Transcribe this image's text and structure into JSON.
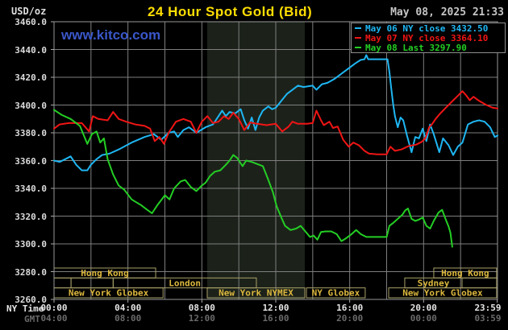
{
  "header": {
    "units_label": "USD/oz",
    "title": "24 Hour Spot Gold (Bid)",
    "datetime": "May 08, 2025 21:33",
    "watermark": "www.kitco.com"
  },
  "legend": {
    "items": [
      {
        "label": "May 06 NY close 3432.50",
        "color": "#1FB6F2"
      },
      {
        "label": "May 07 NY close 3364.10",
        "color": "#F01515"
      },
      {
        "label": "May 08 Last 3297.90",
        "color": "#24CE24"
      }
    ]
  },
  "axes": {
    "ny_time_label": "NY Time",
    "gmt_label": "GMT",
    "y_tick_labels": [
      "3460.0",
      "3440.0",
      "3420.0",
      "3400.0",
      "3380.0",
      "3360.0",
      "3340.0",
      "3320.0",
      "3300.0",
      "3280.0",
      "3260.0"
    ],
    "ny_times": [
      "00:00",
      "04:00",
      "08:00",
      "12:00",
      "16:00",
      "20:00",
      "23:59"
    ],
    "gmt_times": [
      "04:00",
      "08:00",
      "12:00",
      "16:00",
      "20:00",
      "00:00",
      "03:59"
    ],
    "tick_positions_hours": [
      0,
      4,
      8,
      12,
      16,
      20,
      23.983
    ]
  },
  "sessions": {
    "border_color": "#A9A169",
    "label_color": "#DCB83E",
    "rows": [
      {
        "boxes": [
          {
            "label": "Hong Kong",
            "start_h": 0,
            "end_h": 5.5
          },
          {
            "label": "Hong Kong",
            "start_h": 20.55,
            "end_h": 23.95
          }
        ]
      },
      {
        "boxes": [
          {
            "label": "",
            "start_h": 0,
            "end_h": 0.92
          },
          {
            "label": "",
            "start_h": 0.92,
            "end_h": 3.2
          },
          {
            "label": "London",
            "start_h": 3.2,
            "end_h": 10.95
          },
          {
            "label": "Sydney",
            "start_h": 18.98,
            "end_h": 22.08
          },
          {
            "label": "",
            "start_h": 22.08,
            "end_h": 23.95
          }
        ]
      },
      {
        "boxes": [
          {
            "label": "New York Globex",
            "start_h": 0,
            "end_h": 5.9
          },
          {
            "label": "New York NYMEX",
            "start_h": 8.29,
            "end_h": 13.57
          },
          {
            "label": "NY Globex",
            "start_h": 13.66,
            "end_h": 16.84
          },
          {
            "label": "New York Globex",
            "start_h": 18.11,
            "end_h": 23.95
          }
        ]
      }
    ]
  },
  "colors": {
    "background": "#000000",
    "grid": "#7E7E7E",
    "plot_border": "#989898",
    "shaded_band": "#1C221A"
  },
  "chart_data": {
    "type": "line",
    "title": "24 Hour Spot Gold (Bid)",
    "xlabel": "NY Time (hours)",
    "ylabel": "USD/oz",
    "x_range_hours": [
      0,
      24
    ],
    "ylim": [
      3260,
      3460
    ],
    "y_tick_step": 20,
    "x_grid_step_hours": 2,
    "grid": true,
    "legend_position": "top-right",
    "shaded_band_hours": [
      8.29,
      13.57
    ],
    "series": [
      {
        "name": "May 06",
        "close_label": "NY close 3432.50",
        "color": "#1FB6F2",
        "points": [
          [
            0,
            3360
          ],
          [
            0.3,
            3359
          ],
          [
            0.6,
            3361
          ],
          [
            0.9,
            3363
          ],
          [
            1.2,
            3357
          ],
          [
            1.5,
            3353
          ],
          [
            1.8,
            3353
          ],
          [
            2.0,
            3357
          ],
          [
            2.3,
            3361
          ],
          [
            2.6,
            3364
          ],
          [
            3.0,
            3365
          ],
          [
            3.5,
            3368
          ],
          [
            4.2,
            3373
          ],
          [
            4.9,
            3377
          ],
          [
            5.4,
            3379
          ],
          [
            5.8,
            3375
          ],
          [
            6.2,
            3380
          ],
          [
            6.5,
            3381
          ],
          [
            6.7,
            3377
          ],
          [
            7.0,
            3382
          ],
          [
            7.3,
            3384
          ],
          [
            7.7,
            3380
          ],
          [
            8.2,
            3384
          ],
          [
            8.6,
            3386
          ],
          [
            8.8,
            3390
          ],
          [
            9.1,
            3396
          ],
          [
            9.3,
            3392
          ],
          [
            9.5,
            3395
          ],
          [
            9.8,
            3394
          ],
          [
            10.1,
            3397
          ],
          [
            10.3,
            3389
          ],
          [
            10.5,
            3383
          ],
          [
            10.7,
            3391
          ],
          [
            10.9,
            3382
          ],
          [
            11.1,
            3391
          ],
          [
            11.3,
            3396
          ],
          [
            11.6,
            3399
          ],
          [
            11.8,
            3397
          ],
          [
            12.0,
            3398
          ],
          [
            12.3,
            3403
          ],
          [
            12.6,
            3408
          ],
          [
            12.8,
            3410
          ],
          [
            13.2,
            3414
          ],
          [
            13.5,
            3413
          ],
          [
            14.0,
            3414
          ],
          [
            14.2,
            3411
          ],
          [
            14.5,
            3415
          ],
          [
            14.8,
            3416
          ],
          [
            15.2,
            3419
          ],
          [
            15.7,
            3424
          ],
          [
            16.0,
            3427
          ],
          [
            16.3,
            3430
          ],
          [
            16.6,
            3432.5
          ],
          [
            16.8,
            3433
          ],
          [
            16.9,
            3436
          ],
          [
            17.0,
            3433
          ],
          [
            17.4,
            3433
          ],
          [
            17.8,
            3433
          ],
          [
            18.05,
            3433
          ],
          [
            18.15,
            3424
          ],
          [
            18.25,
            3412
          ],
          [
            18.35,
            3401
          ],
          [
            18.45,
            3392
          ],
          [
            18.6,
            3384
          ],
          [
            18.75,
            3391
          ],
          [
            18.9,
            3389
          ],
          [
            19.1,
            3378
          ],
          [
            19.35,
            3366
          ],
          [
            19.55,
            3377
          ],
          [
            19.75,
            3376
          ],
          [
            19.95,
            3383
          ],
          [
            20.15,
            3374
          ],
          [
            20.35,
            3386
          ],
          [
            20.55,
            3379
          ],
          [
            20.85,
            3366
          ],
          [
            21.05,
            3376
          ],
          [
            21.35,
            3371
          ],
          [
            21.6,
            3364
          ],
          [
            21.85,
            3370
          ],
          [
            22.1,
            3373
          ],
          [
            22.4,
            3386
          ],
          [
            22.7,
            3388
          ],
          [
            23.0,
            3389
          ],
          [
            23.3,
            3388
          ],
          [
            23.6,
            3384
          ],
          [
            23.85,
            3377
          ],
          [
            24,
            3378
          ]
        ]
      },
      {
        "name": "May 07",
        "close_label": "NY close 3364.10",
        "color": "#F01515",
        "points": [
          [
            0,
            3383
          ],
          [
            0.3,
            3386
          ],
          [
            0.8,
            3387
          ],
          [
            1.5,
            3387
          ],
          [
            1.9,
            3381
          ],
          [
            2.1,
            3392
          ],
          [
            2.4,
            3390
          ],
          [
            2.9,
            3389
          ],
          [
            3.2,
            3395
          ],
          [
            3.5,
            3390
          ],
          [
            3.9,
            3388
          ],
          [
            4.4,
            3386
          ],
          [
            4.9,
            3385
          ],
          [
            5.2,
            3383
          ],
          [
            5.45,
            3374
          ],
          [
            5.7,
            3377
          ],
          [
            5.95,
            3372
          ],
          [
            6.2,
            3380
          ],
          [
            6.6,
            3388
          ],
          [
            7.0,
            3390
          ],
          [
            7.4,
            3388
          ],
          [
            7.7,
            3380
          ],
          [
            8.0,
            3388
          ],
          [
            8.3,
            3392
          ],
          [
            8.6,
            3387
          ],
          [
            8.9,
            3388
          ],
          [
            9.2,
            3392
          ],
          [
            9.45,
            3390
          ],
          [
            9.7,
            3394.5
          ],
          [
            10.0,
            3390
          ],
          [
            10.3,
            3382
          ],
          [
            10.6,
            3387.5
          ],
          [
            11.0,
            3386.5
          ],
          [
            11.5,
            3385.5
          ],
          [
            12.0,
            3386.5
          ],
          [
            12.35,
            3381
          ],
          [
            12.7,
            3384.5
          ],
          [
            12.9,
            3388
          ],
          [
            13.2,
            3386.5
          ],
          [
            13.7,
            3386.5
          ],
          [
            14.0,
            3387
          ],
          [
            14.2,
            3396
          ],
          [
            14.45,
            3389
          ],
          [
            14.6,
            3385.5
          ],
          [
            14.9,
            3388
          ],
          [
            15.1,
            3383.5
          ],
          [
            15.35,
            3384.5
          ],
          [
            15.65,
            3375
          ],
          [
            15.95,
            3370
          ],
          [
            16.2,
            3373
          ],
          [
            16.5,
            3371
          ],
          [
            16.8,
            3367
          ],
          [
            17.05,
            3365
          ],
          [
            17.5,
            3364.5
          ],
          [
            18.0,
            3364.5
          ],
          [
            18.2,
            3370
          ],
          [
            18.45,
            3367
          ],
          [
            18.8,
            3368
          ],
          [
            19.2,
            3370.5
          ],
          [
            19.6,
            3371.5
          ],
          [
            19.9,
            3373.5
          ],
          [
            20.1,
            3376
          ],
          [
            20.3,
            3384
          ],
          [
            20.45,
            3386
          ],
          [
            20.65,
            3390
          ],
          [
            20.9,
            3394
          ],
          [
            21.2,
            3398
          ],
          [
            21.5,
            3402
          ],
          [
            21.8,
            3406
          ],
          [
            22.1,
            3410
          ],
          [
            22.3,
            3407
          ],
          [
            22.5,
            3403.5
          ],
          [
            22.7,
            3406
          ],
          [
            23.0,
            3403
          ],
          [
            23.4,
            3400
          ],
          [
            23.75,
            3398
          ],
          [
            24,
            3397.5
          ]
        ]
      },
      {
        "name": "May 08",
        "close_label": "Last 3297.90",
        "color": "#24CE24",
        "points": [
          [
            0,
            3396.5
          ],
          [
            0.4,
            3393
          ],
          [
            0.9,
            3390
          ],
          [
            1.4,
            3385
          ],
          [
            1.8,
            3372
          ],
          [
            2.05,
            3379
          ],
          [
            2.3,
            3381
          ],
          [
            2.5,
            3373
          ],
          [
            2.7,
            3376
          ],
          [
            2.9,
            3361
          ],
          [
            3.2,
            3350
          ],
          [
            3.5,
            3342
          ],
          [
            3.8,
            3339
          ],
          [
            4.2,
            3332
          ],
          [
            4.7,
            3328
          ],
          [
            5.0,
            3325
          ],
          [
            5.3,
            3322
          ],
          [
            5.6,
            3328
          ],
          [
            6.0,
            3335
          ],
          [
            6.25,
            3332
          ],
          [
            6.5,
            3340
          ],
          [
            6.85,
            3345
          ],
          [
            7.1,
            3346
          ],
          [
            7.4,
            3341
          ],
          [
            7.7,
            3338
          ],
          [
            8.0,
            3342
          ],
          [
            8.2,
            3344
          ],
          [
            8.45,
            3349
          ],
          [
            8.7,
            3352
          ],
          [
            9.0,
            3353
          ],
          [
            9.3,
            3357
          ],
          [
            9.5,
            3360
          ],
          [
            9.7,
            3364
          ],
          [
            9.9,
            3362
          ],
          [
            10.2,
            3356
          ],
          [
            10.4,
            3360
          ],
          [
            10.7,
            3359
          ],
          [
            11.0,
            3357.5
          ],
          [
            11.3,
            3356
          ],
          [
            11.6,
            3346
          ],
          [
            11.85,
            3337
          ],
          [
            12.05,
            3327
          ],
          [
            12.3,
            3319
          ],
          [
            12.5,
            3313
          ],
          [
            12.8,
            3310
          ],
          [
            13.1,
            3311
          ],
          [
            13.35,
            3313
          ],
          [
            13.6,
            3309
          ],
          [
            13.85,
            3305
          ],
          [
            14.05,
            3306
          ],
          [
            14.25,
            3303
          ],
          [
            14.45,
            3308.5
          ],
          [
            14.7,
            3309
          ],
          [
            15.0,
            3309
          ],
          [
            15.3,
            3307
          ],
          [
            15.55,
            3302
          ],
          [
            15.8,
            3304
          ],
          [
            16.1,
            3307
          ],
          [
            16.35,
            3310
          ],
          [
            16.6,
            3307
          ],
          [
            16.9,
            3305
          ],
          [
            17.3,
            3305
          ],
          [
            17.7,
            3305
          ],
          [
            18.0,
            3305
          ],
          [
            18.15,
            3313
          ],
          [
            18.35,
            3315
          ],
          [
            18.6,
            3318
          ],
          [
            18.85,
            3321
          ],
          [
            19.0,
            3324
          ],
          [
            19.15,
            3325.5
          ],
          [
            19.35,
            3318
          ],
          [
            19.55,
            3316.5
          ],
          [
            19.75,
            3317.5
          ],
          [
            19.95,
            3319
          ],
          [
            20.15,
            3313
          ],
          [
            20.35,
            3311
          ],
          [
            20.55,
            3316.5
          ],
          [
            20.8,
            3322.5
          ],
          [
            21.0,
            3324.5
          ],
          [
            21.2,
            3317.5
          ],
          [
            21.35,
            3312.5
          ],
          [
            21.45,
            3308
          ],
          [
            21.55,
            3297.9
          ]
        ]
      }
    ]
  }
}
